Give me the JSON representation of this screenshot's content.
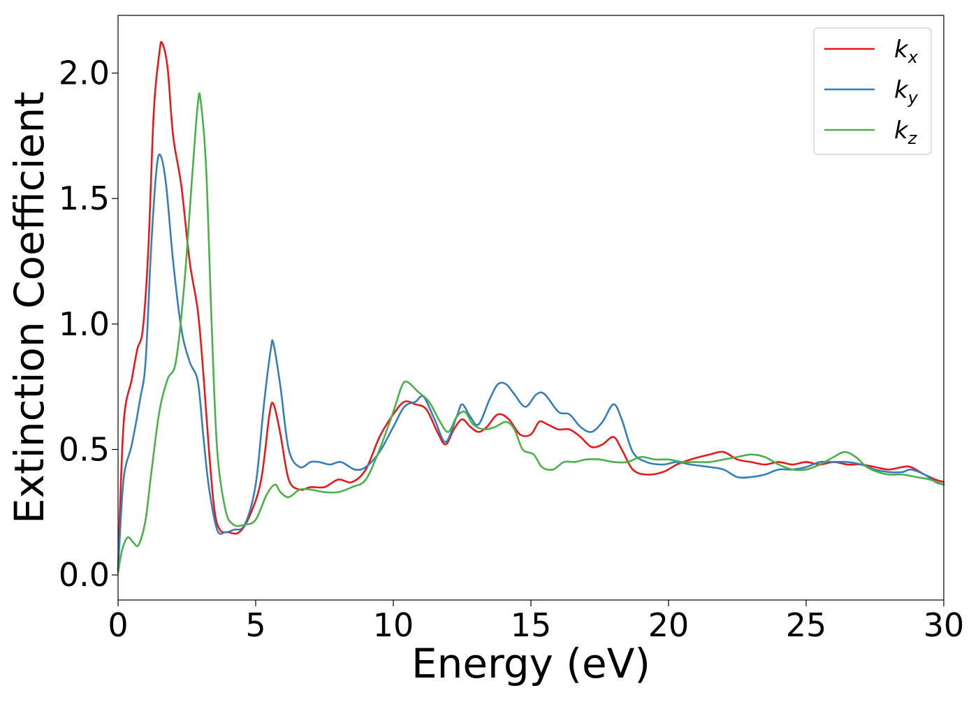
{
  "chart_data": {
    "type": "line",
    "xlabel": "Energy (eV)",
    "ylabel": "Extinction Coefficient",
    "xlim": [
      0,
      30
    ],
    "ylim": [
      -0.1,
      2.23
    ],
    "x_ticks": [
      0,
      5,
      10,
      15,
      20,
      25,
      30
    ],
    "y_ticks": [
      0.0,
      0.5,
      1.0,
      1.5,
      2.0
    ],
    "x_tick_labels": [
      "0",
      "5",
      "10",
      "15",
      "20",
      "25",
      "30"
    ],
    "y_tick_labels": [
      "0.0",
      "0.5",
      "1.0",
      "1.5",
      "2.0"
    ],
    "grid": false,
    "legend_position": "top-right",
    "series": [
      {
        "name": "k_x",
        "label_base": "k",
        "label_sub": "x",
        "color": "#e41a1c",
        "points": [
          [
            0,
            0.02
          ],
          [
            0.2,
            0.6
          ],
          [
            0.5,
            0.78
          ],
          [
            0.7,
            0.9
          ],
          [
            0.9,
            0.98
          ],
          [
            1.1,
            1.3
          ],
          [
            1.3,
            1.85
          ],
          [
            1.5,
            2.08
          ],
          [
            1.6,
            2.12
          ],
          [
            1.8,
            2.02
          ],
          [
            2.0,
            1.75
          ],
          [
            2.3,
            1.55
          ],
          [
            2.6,
            1.25
          ],
          [
            2.9,
            1.05
          ],
          [
            3.1,
            0.8
          ],
          [
            3.3,
            0.5
          ],
          [
            3.5,
            0.26
          ],
          [
            3.7,
            0.18
          ],
          [
            4.0,
            0.17
          ],
          [
            4.4,
            0.17
          ],
          [
            4.8,
            0.24
          ],
          [
            5.2,
            0.38
          ],
          [
            5.5,
            0.64
          ],
          [
            5.65,
            0.68
          ],
          [
            5.9,
            0.56
          ],
          [
            6.2,
            0.38
          ],
          [
            6.6,
            0.34
          ],
          [
            7.0,
            0.35
          ],
          [
            7.5,
            0.35
          ],
          [
            8.0,
            0.38
          ],
          [
            8.5,
            0.37
          ],
          [
            9.0,
            0.42
          ],
          [
            9.5,
            0.55
          ],
          [
            10.0,
            0.64
          ],
          [
            10.4,
            0.69
          ],
          [
            10.8,
            0.68
          ],
          [
            11.2,
            0.66
          ],
          [
            11.6,
            0.57
          ],
          [
            11.9,
            0.52
          ],
          [
            12.2,
            0.58
          ],
          [
            12.5,
            0.62
          ],
          [
            12.8,
            0.59
          ],
          [
            13.1,
            0.57
          ],
          [
            13.4,
            0.59
          ],
          [
            13.8,
            0.64
          ],
          [
            14.2,
            0.62
          ],
          [
            14.6,
            0.56
          ],
          [
            15.0,
            0.56
          ],
          [
            15.3,
            0.61
          ],
          [
            15.6,
            0.6
          ],
          [
            16.0,
            0.58
          ],
          [
            16.4,
            0.58
          ],
          [
            16.8,
            0.55
          ],
          [
            17.2,
            0.51
          ],
          [
            17.6,
            0.52
          ],
          [
            18.0,
            0.55
          ],
          [
            18.3,
            0.5
          ],
          [
            18.7,
            0.42
          ],
          [
            19.2,
            0.4
          ],
          [
            19.8,
            0.41
          ],
          [
            20.3,
            0.44
          ],
          [
            20.8,
            0.46
          ],
          [
            21.5,
            0.48
          ],
          [
            22.0,
            0.49
          ],
          [
            22.5,
            0.46
          ],
          [
            23.0,
            0.45
          ],
          [
            23.5,
            0.44
          ],
          [
            24.0,
            0.45
          ],
          [
            24.5,
            0.44
          ],
          [
            25.0,
            0.45
          ],
          [
            25.5,
            0.44
          ],
          [
            26.0,
            0.45
          ],
          [
            26.5,
            0.44
          ],
          [
            27.0,
            0.44
          ],
          [
            27.5,
            0.43
          ],
          [
            28.0,
            0.42
          ],
          [
            28.5,
            0.43
          ],
          [
            28.8,
            0.43
          ],
          [
            29.3,
            0.4
          ],
          [
            29.7,
            0.38
          ],
          [
            30,
            0.37
          ]
        ]
      },
      {
        "name": "k_y",
        "label_base": "k",
        "label_sub": "y",
        "color": "#377eb8",
        "points": [
          [
            0,
            0.02
          ],
          [
            0.2,
            0.38
          ],
          [
            0.5,
            0.52
          ],
          [
            0.8,
            0.7
          ],
          [
            1.0,
            0.85
          ],
          [
            1.2,
            1.3
          ],
          [
            1.4,
            1.62
          ],
          [
            1.55,
            1.67
          ],
          [
            1.75,
            1.55
          ],
          [
            2.0,
            1.25
          ],
          [
            2.3,
            0.98
          ],
          [
            2.6,
            0.85
          ],
          [
            2.9,
            0.77
          ],
          [
            3.1,
            0.55
          ],
          [
            3.3,
            0.35
          ],
          [
            3.6,
            0.18
          ],
          [
            3.9,
            0.17
          ],
          [
            4.2,
            0.18
          ],
          [
            4.6,
            0.2
          ],
          [
            5.0,
            0.36
          ],
          [
            5.3,
            0.68
          ],
          [
            5.55,
            0.9
          ],
          [
            5.65,
            0.92
          ],
          [
            5.9,
            0.75
          ],
          [
            6.2,
            0.5
          ],
          [
            6.6,
            0.43
          ],
          [
            7.0,
            0.45
          ],
          [
            7.3,
            0.45
          ],
          [
            7.7,
            0.44
          ],
          [
            8.1,
            0.45
          ],
          [
            8.6,
            0.42
          ],
          [
            9.0,
            0.43
          ],
          [
            9.5,
            0.49
          ],
          [
            10.0,
            0.59
          ],
          [
            10.4,
            0.67
          ],
          [
            10.8,
            0.69
          ],
          [
            11.1,
            0.71
          ],
          [
            11.5,
            0.62
          ],
          [
            11.9,
            0.53
          ],
          [
            12.3,
            0.63
          ],
          [
            12.5,
            0.68
          ],
          [
            12.8,
            0.63
          ],
          [
            13.1,
            0.6
          ],
          [
            13.5,
            0.7
          ],
          [
            13.8,
            0.76
          ],
          [
            14.1,
            0.76
          ],
          [
            14.4,
            0.72
          ],
          [
            14.8,
            0.67
          ],
          [
            15.2,
            0.72
          ],
          [
            15.5,
            0.72
          ],
          [
            16.0,
            0.65
          ],
          [
            16.4,
            0.64
          ],
          [
            16.8,
            0.59
          ],
          [
            17.2,
            0.57
          ],
          [
            17.6,
            0.61
          ],
          [
            18.0,
            0.68
          ],
          [
            18.3,
            0.62
          ],
          [
            18.7,
            0.49
          ],
          [
            19.2,
            0.45
          ],
          [
            19.8,
            0.44
          ],
          [
            20.3,
            0.45
          ],
          [
            20.8,
            0.44
          ],
          [
            21.5,
            0.43
          ],
          [
            22.0,
            0.42
          ],
          [
            22.5,
            0.39
          ],
          [
            23.0,
            0.39
          ],
          [
            23.5,
            0.4
          ],
          [
            24.0,
            0.42
          ],
          [
            24.5,
            0.42
          ],
          [
            25.0,
            0.43
          ],
          [
            25.5,
            0.45
          ],
          [
            26.0,
            0.45
          ],
          [
            26.5,
            0.45
          ],
          [
            27.0,
            0.44
          ],
          [
            27.5,
            0.42
          ],
          [
            28.0,
            0.41
          ],
          [
            28.5,
            0.41
          ],
          [
            28.8,
            0.42
          ],
          [
            29.3,
            0.4
          ],
          [
            29.7,
            0.37
          ],
          [
            30,
            0.36
          ]
        ]
      },
      {
        "name": "k_z",
        "label_base": "k",
        "label_sub": "z",
        "color": "#4daf4a",
        "points": [
          [
            0,
            0.01
          ],
          [
            0.15,
            0.1
          ],
          [
            0.35,
            0.15
          ],
          [
            0.55,
            0.13
          ],
          [
            0.75,
            0.12
          ],
          [
            1.0,
            0.22
          ],
          [
            1.2,
            0.4
          ],
          [
            1.5,
            0.65
          ],
          [
            1.8,
            0.78
          ],
          [
            2.1,
            0.85
          ],
          [
            2.4,
            1.15
          ],
          [
            2.7,
            1.6
          ],
          [
            2.9,
            1.88
          ],
          [
            3.0,
            1.89
          ],
          [
            3.2,
            1.62
          ],
          [
            3.4,
            1.0
          ],
          [
            3.6,
            0.5
          ],
          [
            3.9,
            0.26
          ],
          [
            4.2,
            0.2
          ],
          [
            4.6,
            0.2
          ],
          [
            5.0,
            0.22
          ],
          [
            5.4,
            0.32
          ],
          [
            5.7,
            0.36
          ],
          [
            5.9,
            0.33
          ],
          [
            6.2,
            0.31
          ],
          [
            6.6,
            0.34
          ],
          [
            7.0,
            0.34
          ],
          [
            7.5,
            0.33
          ],
          [
            8.0,
            0.33
          ],
          [
            8.5,
            0.35
          ],
          [
            9.0,
            0.38
          ],
          [
            9.5,
            0.5
          ],
          [
            10.0,
            0.65
          ],
          [
            10.3,
            0.75
          ],
          [
            10.5,
            0.77
          ],
          [
            10.9,
            0.73
          ],
          [
            11.3,
            0.69
          ],
          [
            11.7,
            0.61
          ],
          [
            12.0,
            0.57
          ],
          [
            12.3,
            0.63
          ],
          [
            12.6,
            0.65
          ],
          [
            12.9,
            0.6
          ],
          [
            13.3,
            0.58
          ],
          [
            13.7,
            0.59
          ],
          [
            14.1,
            0.61
          ],
          [
            14.4,
            0.58
          ],
          [
            14.7,
            0.5
          ],
          [
            15.1,
            0.48
          ],
          [
            15.4,
            0.43
          ],
          [
            15.8,
            0.42
          ],
          [
            16.2,
            0.45
          ],
          [
            16.6,
            0.45
          ],
          [
            17.0,
            0.46
          ],
          [
            17.5,
            0.46
          ],
          [
            18.0,
            0.45
          ],
          [
            18.5,
            0.45
          ],
          [
            19.0,
            0.47
          ],
          [
            19.5,
            0.46
          ],
          [
            20.0,
            0.46
          ],
          [
            20.5,
            0.45
          ],
          [
            21.0,
            0.45
          ],
          [
            21.5,
            0.45
          ],
          [
            22.0,
            0.46
          ],
          [
            22.5,
            0.47
          ],
          [
            23.0,
            0.48
          ],
          [
            23.5,
            0.47
          ],
          [
            24.0,
            0.44
          ],
          [
            24.5,
            0.42
          ],
          [
            25.0,
            0.42
          ],
          [
            25.5,
            0.44
          ],
          [
            26.0,
            0.47
          ],
          [
            26.4,
            0.49
          ],
          [
            26.8,
            0.47
          ],
          [
            27.2,
            0.43
          ],
          [
            27.6,
            0.41
          ],
          [
            28.0,
            0.4
          ],
          [
            28.5,
            0.4
          ],
          [
            29.0,
            0.39
          ],
          [
            29.5,
            0.38
          ],
          [
            30,
            0.36
          ]
        ]
      }
    ]
  }
}
